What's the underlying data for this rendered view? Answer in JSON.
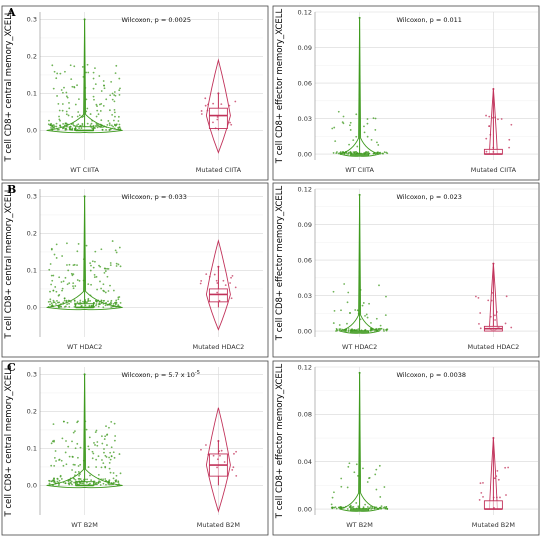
{
  "colors": {
    "wt": "#3f9a1f",
    "mutated": "#c1325a",
    "grid": "#d8d8d8",
    "frame": "#444444"
  },
  "chart_data": [
    {
      "type": "violin-box-jitter",
      "panel": "A",
      "ylabel": "T cell CD8+ central memory_XCELL",
      "categories": [
        "WT CIITA",
        "Mutated CIITA"
      ],
      "annotation": {
        "prefix": "Wilcoxon, p = 0.0025"
      },
      "yticks": [
        0.0,
        0.1,
        0.2,
        0.3
      ],
      "ytick_labels": [
        "0.0",
        "0.1",
        "0.2",
        "0.3"
      ],
      "ylim": [
        -0.08,
        0.32
      ],
      "groups": [
        {
          "median": 0.0,
          "q1": 0.0,
          "q3": 0.01,
          "whisker_low": 0.0,
          "whisker_high": 0.3,
          "violin_min": -0.005,
          "violin_max": 0.3
        },
        {
          "median": 0.04,
          "q1": 0.005,
          "q3": 0.06,
          "whisker_low": 0.0,
          "whisker_high": 0.1,
          "violin_min": -0.06,
          "violin_max": 0.19
        }
      ]
    },
    {
      "type": "violin-box-jitter",
      "panel": "",
      "ylabel": "T cell CD8+ effector memory_XCELL",
      "categories": [
        "WT CIITA",
        "Mutated CIITA"
      ],
      "annotation": {
        "prefix": "Wilcoxon, p = 0.011"
      },
      "yticks": [
        0.0,
        0.03,
        0.06,
        0.09,
        0.12
      ],
      "ytick_labels": [
        "0.00",
        "0.03",
        "0.06",
        "0.09",
        "0.12"
      ],
      "ylim": [
        -0.005,
        0.12
      ],
      "groups": [
        {
          "median": 0.0,
          "q1": 0.0,
          "q3": 0.0,
          "whisker_low": 0.0,
          "whisker_high": 0.115,
          "violin_min": 0.0,
          "violin_max": 0.115
        },
        {
          "median": 0.0,
          "q1": 0.0,
          "q3": 0.004,
          "whisker_low": 0.0,
          "whisker_high": 0.055,
          "violin_min": 0.0,
          "violin_max": 0.055
        }
      ]
    },
    {
      "type": "violin-box-jitter",
      "panel": "B",
      "ylabel": "T cell CD8+ central memory_XCELL",
      "categories": [
        "WT HDAC2",
        "Mutated HDAC2"
      ],
      "annotation": {
        "prefix": "Wilcoxon, p = 0.033"
      },
      "yticks": [
        0.0,
        0.1,
        0.2,
        0.3
      ],
      "ytick_labels": [
        "0.0",
        "0.1",
        "0.2",
        "0.3"
      ],
      "ylim": [
        -0.08,
        0.32
      ],
      "groups": [
        {
          "median": 0.0,
          "q1": 0.0,
          "q3": 0.01,
          "whisker_low": 0.0,
          "whisker_high": 0.3,
          "violin_min": -0.005,
          "violin_max": 0.3
        },
        {
          "median": 0.035,
          "q1": 0.015,
          "q3": 0.05,
          "whisker_low": 0.0,
          "whisker_high": 0.11,
          "violin_min": -0.06,
          "violin_max": 0.18
        }
      ]
    },
    {
      "type": "violin-box-jitter",
      "panel": "",
      "ylabel": "T cell CD8+ effector memory_XCELL",
      "categories": [
        "WT HDAC2",
        "Mutated HDAC2"
      ],
      "annotation": {
        "prefix": "Wilcoxon, p = 0.023"
      },
      "yticks": [
        0.0,
        0.03,
        0.06,
        0.09,
        0.12
      ],
      "ytick_labels": [
        "0.00",
        "0.03",
        "0.06",
        "0.09",
        "0.12"
      ],
      "ylim": [
        -0.005,
        0.12
      ],
      "groups": [
        {
          "median": 0.0,
          "q1": 0.0,
          "q3": 0.0,
          "whisker_low": 0.0,
          "whisker_high": 0.115,
          "violin_min": 0.0,
          "violin_max": 0.115
        },
        {
          "median": 0.002,
          "q1": 0.0,
          "q3": 0.004,
          "whisker_low": 0.0,
          "whisker_high": 0.057,
          "violin_min": 0.0,
          "violin_max": 0.057
        }
      ]
    },
    {
      "type": "violin-box-jitter",
      "panel": "C",
      "ylabel": "T cell CD8+ central memory_XCELL",
      "categories": [
        "WT B2M",
        "Mutated B2M"
      ],
      "annotation": {
        "prefix": "Wilcoxon, p = 5.7 x 10",
        "sup": "-5"
      },
      "yticks": [
        0.0,
        0.1,
        0.2,
        0.3
      ],
      "ytick_labels": [
        "0.0",
        "0.1",
        "0.2",
        "0.3"
      ],
      "ylim": [
        -0.08,
        0.32
      ],
      "groups": [
        {
          "median": 0.0,
          "q1": 0.0,
          "q3": 0.01,
          "whisker_low": 0.0,
          "whisker_high": 0.3,
          "violin_min": -0.005,
          "violin_max": 0.3
        },
        {
          "median": 0.055,
          "q1": 0.025,
          "q3": 0.085,
          "whisker_low": 0.0,
          "whisker_high": 0.12,
          "violin_min": -0.07,
          "violin_max": 0.21
        }
      ]
    },
    {
      "type": "violin-box-jitter",
      "panel": "",
      "ylabel": "T cell CD8+ effector memory_XCELL",
      "categories": [
        "WT B2M",
        "Mutated B2M"
      ],
      "annotation": {
        "prefix": "Wilcoxon, p = 0.0038"
      },
      "yticks": [
        0.0,
        0.04,
        0.08,
        0.12
      ],
      "ytick_labels": [
        "0.00",
        "0.04",
        "0.08",
        "0.12"
      ],
      "ylim": [
        -0.005,
        0.12
      ],
      "groups": [
        {
          "median": 0.0,
          "q1": 0.0,
          "q3": 0.0,
          "whisker_low": 0.0,
          "whisker_high": 0.115,
          "violin_min": 0.0,
          "violin_max": 0.115
        },
        {
          "median": 0.0,
          "q1": 0.0,
          "q3": 0.007,
          "whisker_low": 0.0,
          "whisker_high": 0.06,
          "violin_min": 0.0,
          "violin_max": 0.06
        }
      ]
    }
  ]
}
